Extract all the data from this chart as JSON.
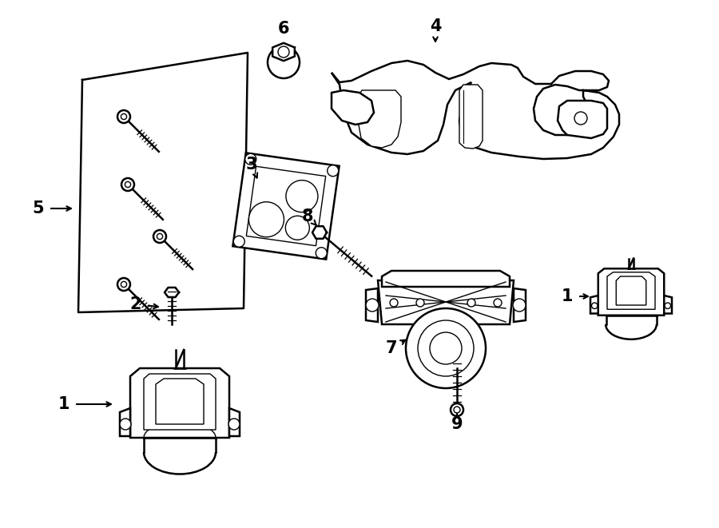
{
  "bg_color": "#ffffff",
  "line_color": "#000000",
  "lw_main": 1.8,
  "lw_thin": 1.0,
  "label_fontsize": 15
}
